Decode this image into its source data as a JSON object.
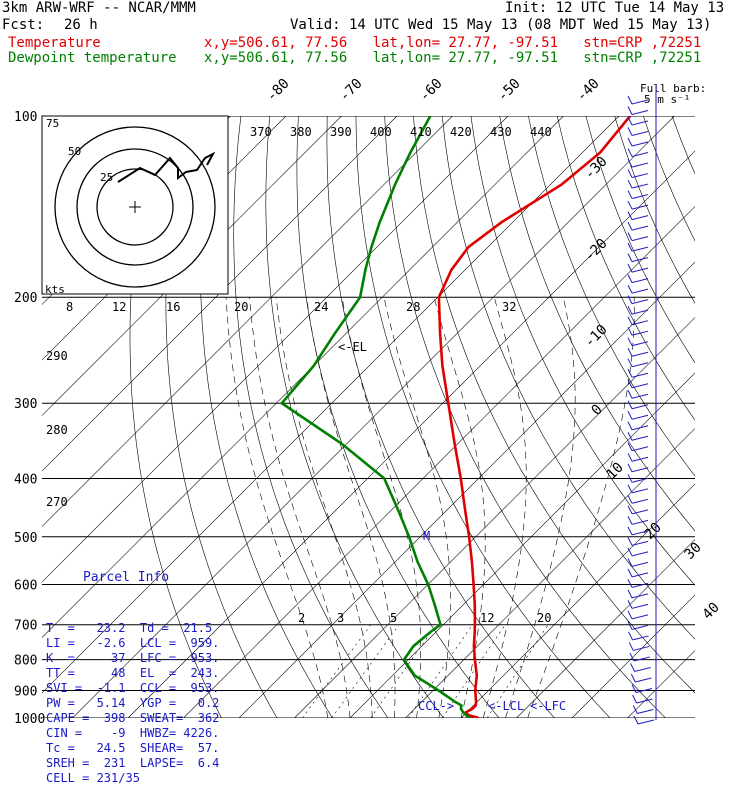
{
  "header": {
    "model": "3km ARW-WRF -- NCAR/MMM",
    "init": "Init: 12 UTC Tue 14 May 13",
    "fcst_label": "Fcst:",
    "fcst_value": "26 h",
    "valid": "Valid: 14 UTC Wed 15 May 13 (08 MDT Wed 15 May 13)",
    "temp_label": "Temperature",
    "temp_info": "x,y=506.61, 77.56   lat,lon= 27.77, -97.51   stn=CRP ,72251",
    "dew_label": "Dewpoint temperature",
    "dew_info": "x,y=506.61, 77.56   lat,lon= 27.77, -97.51   stn=CRP ,72251"
  },
  "colors": {
    "temperature": "#e00000",
    "dewpoint": "#008000",
    "text": "#000000",
    "info": "#1a1ac8"
  },
  "wind_legend": {
    "line1": "Full barb:",
    "line2": "5 m s⁻¹"
  },
  "hodograph": {
    "units": "kts",
    "rings": [
      "25",
      "50",
      "75"
    ],
    "ticks": [
      "8",
      "12",
      "16",
      "20",
      "24",
      "28",
      "32"
    ]
  },
  "annotations": {
    "el": "<-EL",
    "m": "M",
    "ccl": "CCL->",
    "lcl": "<-LCL",
    "lfc": "<-LFC"
  },
  "parcel_info": {
    "title": "Parcel Info",
    "rows": [
      "T  =   23.2  Td =  21.5",
      "LI =   -2.6  LCL =  959.",
      "K  =     37  LFC =  953.",
      "TT =     48  EL  =  243.",
      "SVI =  -1.1  CCL =  953.",
      "PW =   5.14  YGP =   0.2",
      "CAPE =  398  SWEAT=  362",
      "CIN =    -9  HWBZ= 4226.",
      "Tc =   24.5  SHEAR=  57.",
      "SREH =  231  LAPSE=  6.4",
      "CELL = 231/35"
    ]
  },
  "chart_data": {
    "type": "line",
    "title": "",
    "y_axis": {
      "label": "",
      "scale": "log",
      "range_hpa": [
        1000,
        100
      ],
      "ticks": [
        100,
        200,
        300,
        400,
        500,
        600,
        700,
        800,
        900,
        1000
      ]
    },
    "isotherm_labels": [
      "-80",
      "-70",
      "-60",
      "-50",
      "-40",
      "-30",
      "-20",
      "-10",
      "0",
      "10",
      "20",
      "30",
      "40"
    ],
    "theta_labels": [
      "370",
      "380",
      "390",
      "400",
      "410",
      "420",
      "430",
      "440"
    ],
    "theta_left_labels": [
      "290",
      "280",
      "270"
    ],
    "mixing_ratio_labels": [
      "2",
      "3",
      "5",
      "12",
      "20"
    ],
    "series": [
      {
        "name": "Temperature",
        "p": [
          1000,
          990,
          980,
          965,
          953,
          940,
          900,
          850,
          800,
          760,
          720,
          700,
          650,
          600,
          550,
          500,
          450,
          400,
          350,
          300,
          260,
          230,
          200,
          180,
          165,
          150,
          130,
          115,
          100
        ],
        "t": [
          23.2,
          21.0,
          19.8,
          20.4,
          20.4,
          19.8,
          17.6,
          15.2,
          12.0,
          9.4,
          7.0,
          5.7,
          2.2,
          -1.8,
          -6.2,
          -11.2,
          -16.9,
          -23.2,
          -30.6,
          -39.0,
          -46.8,
          -53.0,
          -59.8,
          -62.5,
          -63.5,
          -62.0,
          -58.0,
          -56.8,
          -58.0
        ]
      },
      {
        "name": "Dewpoint temperature",
        "p": [
          1000,
          990,
          980,
          965,
          953,
          940,
          900,
          850,
          800,
          760,
          720,
          700,
          650,
          600,
          550,
          500,
          450,
          400,
          350,
          300,
          260,
          230,
          200,
          180,
          165,
          150,
          130,
          115,
          100
        ],
        "td": [
          21.5,
          20.5,
          19.5,
          18.3,
          17.8,
          16.0,
          11.0,
          4.0,
          -0.8,
          -1.5,
          -1.0,
          -0.5,
          -5.0,
          -10.0,
          -16.0,
          -22.0,
          -29.0,
          -37.0,
          -51.0,
          -69.0,
          -70.0,
          -72.0,
          -74.0,
          -78.0,
          -81.0,
          -84.0,
          -88.0,
          -91.0,
          -94.0
        ]
      }
    ],
    "wind_barbs": {
      "units": "m s-1",
      "count": 60
    }
  }
}
